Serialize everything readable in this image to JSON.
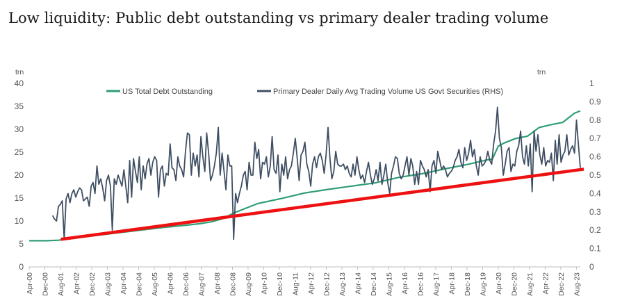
{
  "chart_data": {
    "type": "line",
    "title": "Low liquidity: Public debt outstanding vs primary dealer trading volume",
    "left_unit": "trn",
    "right_unit": "trn",
    "y_left_range": [
      0,
      40
    ],
    "y_left_ticks": [
      0,
      5,
      10,
      15,
      20,
      25,
      30,
      35,
      40
    ],
    "y_right_range": [
      0,
      1
    ],
    "y_right_ticks": [
      "0",
      "0.1",
      "0.2",
      "0.3",
      "0.4",
      "0.5",
      "0.6",
      "0.7",
      "0.8",
      "0.9",
      "1"
    ],
    "x_ticks": [
      "Apr-00",
      "Dec-00",
      "Aug-01",
      "Apr-02",
      "Dec-02",
      "Aug-03",
      "Apr-04",
      "Dec-04",
      "Aug-05",
      "Apr-06",
      "Dec-06",
      "Aug-07",
      "Apr-08",
      "Dec-08",
      "Aug-09",
      "Apr-10",
      "Dec-10",
      "Aug-11",
      "Apr-12",
      "Dec-12",
      "Aug-13",
      "Apr-14",
      "Dec-14",
      "Aug-15",
      "Apr-16",
      "Dec-16",
      "Aug-17",
      "Apr-18",
      "Dec-18",
      "Aug-19",
      "Apr-20",
      "Dec-20",
      "Aug-21",
      "Apr-22",
      "Dec-22",
      "Aug-23"
    ],
    "colors": {
      "debt": "#2e9e74",
      "volume": "#3f4f63",
      "trend": "#ee1111"
    },
    "series": [
      {
        "name": "US Total Debt Outstanding",
        "axis": "left",
        "x": [
          2000.25,
          2001.0,
          2001.5,
          2002.0,
          2003.0,
          2004.0,
          2005.0,
          2006.0,
          2007.0,
          2007.5,
          2008.0,
          2008.5,
          2009.0,
          2009.5,
          2010.0,
          2011.0,
          2012.0,
          2013.0,
          2014.0,
          2015.0,
          2016.0,
          2017.0,
          2018.0,
          2019.0,
          2019.75,
          2020.0,
          2020.25,
          2020.5,
          2021.0,
          2021.5,
          2022.0,
          2022.5,
          2023.0,
          2023.5,
          2023.75
        ],
        "values": [
          5.7,
          5.7,
          5.8,
          6.2,
          6.8,
          7.4,
          8.0,
          8.6,
          9.1,
          9.4,
          9.8,
          10.5,
          11.8,
          12.8,
          13.8,
          14.9,
          16.1,
          16.9,
          17.6,
          18.3,
          19.5,
          20.3,
          21.4,
          22.4,
          23.3,
          23.5,
          26.3,
          27.0,
          28.0,
          28.5,
          30.4,
          31.0,
          31.5,
          33.5,
          34.0
        ]
      },
      {
        "name": "Primary Dealer Daily Avg Trading Volume US Govt Securities (RHS)",
        "axis": "right",
        "x_start": 2001.25,
        "x_end": 2023.75,
        "values": [
          0.28,
          0.26,
          0.25,
          0.33,
          0.34,
          0.36,
          0.15,
          0.37,
          0.4,
          0.35,
          0.4,
          0.42,
          0.38,
          0.41,
          0.43,
          0.42,
          0.36,
          0.37,
          0.38,
          0.33,
          0.44,
          0.46,
          0.4,
          0.55,
          0.45,
          0.48,
          0.43,
          0.36,
          0.47,
          0.5,
          0.44,
          0.2,
          0.48,
          0.45,
          0.5,
          0.47,
          0.44,
          0.53,
          0.44,
          0.35,
          0.58,
          0.38,
          0.59,
          0.52,
          0.46,
          0.6,
          0.42,
          0.55,
          0.48,
          0.56,
          0.59,
          0.5,
          0.57,
          0.6,
          0.58,
          0.38,
          0.53,
          0.55,
          0.44,
          0.51,
          0.5,
          0.67,
          0.54,
          0.53,
          0.47,
          0.6,
          0.55,
          0.53,
          0.49,
          0.63,
          0.73,
          0.72,
          0.5,
          0.62,
          0.55,
          0.61,
          0.49,
          0.71,
          0.6,
          0.52,
          0.73,
          0.62,
          0.47,
          0.5,
          0.55,
          0.62,
          0.76,
          0.5,
          0.62,
          0.52,
          0.42,
          0.61,
          0.55,
          0.55,
          0.15,
          0.4,
          0.35,
          0.4,
          0.44,
          0.5,
          0.52,
          0.42,
          0.57,
          0.5,
          0.5,
          0.68,
          0.59,
          0.64,
          0.48,
          0.57,
          0.56,
          0.6,
          0.49,
          0.55,
          0.71,
          0.53,
          0.51,
          0.61,
          0.41,
          0.56,
          0.5,
          0.6,
          0.48,
          0.53,
          0.55,
          0.62,
          0.7,
          0.59,
          0.47,
          0.61,
          0.63,
          0.68,
          0.56,
          0.52,
          0.44,
          0.56,
          0.6,
          0.54,
          0.6,
          0.62,
          0.58,
          0.51,
          0.61,
          0.76,
          0.59,
          0.48,
          0.52,
          0.63,
          0.56,
          0.55,
          0.55,
          0.56,
          0.53,
          0.55,
          0.51,
          0.49,
          0.56,
          0.5,
          0.6,
          0.53,
          0.48,
          0.5,
          0.46,
          0.52,
          0.57,
          0.5,
          0.45,
          0.48,
          0.53,
          0.47,
          0.57,
          0.45,
          0.5,
          0.56,
          0.46,
          0.4,
          0.51,
          0.55,
          0.6,
          0.59,
          0.51,
          0.48,
          0.5,
          0.55,
          0.6,
          0.5,
          0.59,
          0.55,
          0.45,
          0.52,
          0.45,
          0.58,
          0.55,
          0.53,
          0.49,
          0.53,
          0.41,
          0.55,
          0.58,
          0.51,
          0.63,
          0.58,
          0.53,
          0.55,
          0.53,
          0.49,
          0.51,
          0.52,
          0.54,
          0.58,
          0.6,
          0.64,
          0.57,
          0.54,
          0.65,
          0.58,
          0.62,
          0.69,
          0.6,
          0.64,
          0.55,
          0.5,
          0.6,
          0.55,
          0.56,
          0.58,
          0.63,
          0.58,
          0.56,
          0.67,
          0.74,
          0.87,
          0.7,
          0.65,
          0.5,
          0.56,
          0.63,
          0.65,
          0.52,
          0.56,
          0.55,
          0.63,
          0.66,
          0.74,
          0.6,
          0.56,
          0.66,
          0.55,
          0.67,
          0.41,
          0.74,
          0.63,
          0.72,
          0.61,
          0.56,
          0.65,
          0.55,
          0.58,
          0.57,
          0.62,
          0.47,
          0.69,
          0.56,
          0.72,
          0.57,
          0.61,
          0.63,
          0.72,
          0.61,
          0.64,
          0.66,
          0.62,
          0.8,
          0.67,
          0.54
        ]
      }
    ],
    "trend_line": {
      "label": "",
      "axis": "left",
      "start": [
        2001.6,
        6.0
      ],
      "end": [
        2023.9,
        21.3
      ]
    },
    "legend_placement": "top"
  }
}
